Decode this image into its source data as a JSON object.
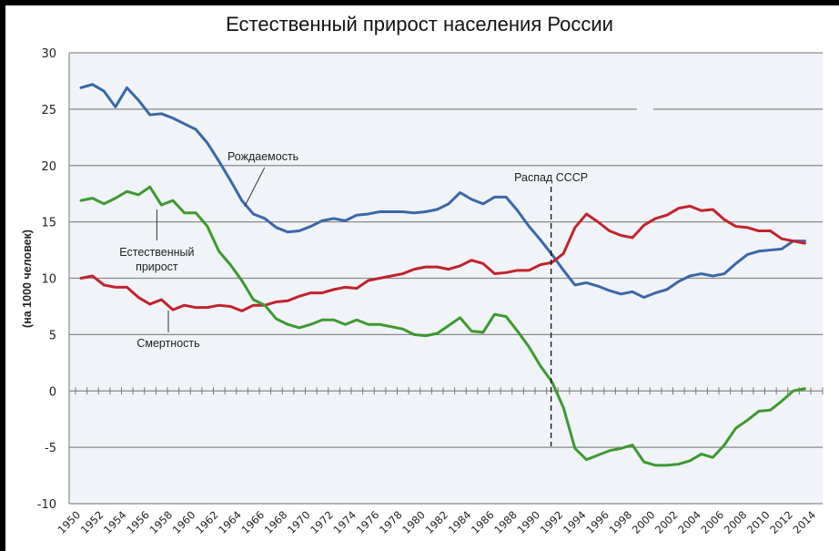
{
  "title": "Естественный прирост населения России",
  "chart_data": {
    "type": "line",
    "title": "Естественный прирост населения России",
    "xlabel": "",
    "ylabel": "(на 1000 человек)",
    "ylim": [
      -10,
      30
    ],
    "yticks": [
      30,
      25,
      20,
      15,
      10,
      5,
      0,
      -5,
      -10
    ],
    "xlim": [
      1950,
      2014
    ],
    "xtick_labels": [
      "1950",
      "1952",
      "1954",
      "1956",
      "1958",
      "1960",
      "1962",
      "1964",
      "1966",
      "1968",
      "1970",
      "1972",
      "1974",
      "1976",
      "1978",
      "1980",
      "1982",
      "1984",
      "1986",
      "1988",
      "1990",
      "1992",
      "1994",
      "1996",
      "1998",
      "2000",
      "2002",
      "2004",
      "2006",
      "2008",
      "2010",
      "2012",
      "2014"
    ],
    "grid": true,
    "legend": "none (inline annotations)",
    "x": [
      1950,
      1951,
      1952,
      1953,
      1954,
      1955,
      1956,
      1957,
      1958,
      1959,
      1960,
      1961,
      1962,
      1963,
      1964,
      1965,
      1966,
      1967,
      1968,
      1969,
      1970,
      1971,
      1972,
      1973,
      1974,
      1975,
      1976,
      1977,
      1978,
      1979,
      1980,
      1981,
      1982,
      1983,
      1984,
      1985,
      1986,
      1987,
      1988,
      1989,
      1990,
      1991,
      1992,
      1993,
      1994,
      1995,
      1996,
      1997,
      1998,
      1999,
      2000,
      2001,
      2002,
      2003,
      2004,
      2005,
      2006,
      2007,
      2008,
      2009,
      2010,
      2011,
      2012,
      2013
    ],
    "series": [
      {
        "name": "Рождаемость",
        "color": "#3a68a8",
        "values": [
          26.9,
          27.2,
          26.6,
          25.2,
          26.9,
          25.8,
          24.5,
          24.6,
          24.2,
          23.7,
          23.2,
          22.0,
          20.4,
          18.7,
          16.9,
          15.7,
          15.3,
          14.5,
          14.1,
          14.2,
          14.6,
          15.1,
          15.3,
          15.1,
          15.6,
          15.7,
          15.9,
          15.9,
          15.9,
          15.8,
          15.9,
          16.1,
          16.6,
          17.6,
          17.0,
          16.6,
          17.2,
          17.2,
          16.0,
          14.6,
          13.4,
          12.1,
          10.7,
          9.4,
          9.6,
          9.3,
          8.9,
          8.6,
          8.8,
          8.3,
          8.7,
          9.0,
          9.7,
          10.2,
          10.4,
          10.2,
          10.4,
          11.3,
          12.1,
          12.4,
          12.5,
          12.6,
          13.3,
          13.3
        ]
      },
      {
        "name": "Смертность",
        "color": "#c0242c",
        "values": [
          10.0,
          10.2,
          9.4,
          9.2,
          9.2,
          8.3,
          7.7,
          8.1,
          7.2,
          7.6,
          7.4,
          7.4,
          7.6,
          7.5,
          7.1,
          7.6,
          7.6,
          7.9,
          8.0,
          8.4,
          8.7,
          8.7,
          9.0,
          9.2,
          9.1,
          9.8,
          10.0,
          10.2,
          10.4,
          10.8,
          11.0,
          11.0,
          10.8,
          11.1,
          11.6,
          11.3,
          10.4,
          10.5,
          10.7,
          10.7,
          11.2,
          11.4,
          12.2,
          14.5,
          15.7,
          15.0,
          14.2,
          13.8,
          13.6,
          14.7,
          15.3,
          15.6,
          16.2,
          16.4,
          16.0,
          16.1,
          15.2,
          14.6,
          14.5,
          14.2,
          14.2,
          13.5,
          13.3,
          13.1
        ]
      },
      {
        "name": "Естественный прирост",
        "color": "#3c9a2e",
        "values": [
          16.9,
          17.1,
          16.6,
          17.1,
          17.7,
          17.4,
          18.1,
          16.5,
          16.9,
          15.8,
          15.8,
          14.6,
          12.4,
          11.2,
          9.8,
          8.1,
          7.6,
          6.4,
          5.9,
          5.6,
          5.9,
          6.3,
          6.3,
          5.9,
          6.3,
          5.9,
          5.9,
          5.7,
          5.5,
          5.0,
          4.9,
          5.1,
          5.8,
          6.5,
          5.3,
          5.2,
          6.8,
          6.6,
          5.3,
          3.9,
          2.2,
          0.8,
          -1.5,
          -5.1,
          -6.1,
          -5.7,
          -5.3,
          -5.1,
          -4.8,
          -6.3,
          -6.6,
          -6.6,
          -6.5,
          -6.2,
          -5.6,
          -5.9,
          -4.8,
          -3.3,
          -2.6,
          -1.8,
          -1.7,
          -0.9,
          0.0,
          0.2
        ]
      }
    ],
    "annotations": [
      {
        "text": "Рождаемость",
        "target_series": "Рождаемость",
        "x": 1964,
        "y": 17.0
      },
      {
        "text": "Естественный прирост",
        "target_series": "Естественный прирост",
        "x": 1957,
        "y": 16.5
      },
      {
        "text": "Смертность",
        "target_series": "Смертность",
        "x": 1958,
        "y": 7.2
      },
      {
        "text": "Распад СССР",
        "type": "vertical-dashed-line",
        "x": 1991
      }
    ]
  }
}
